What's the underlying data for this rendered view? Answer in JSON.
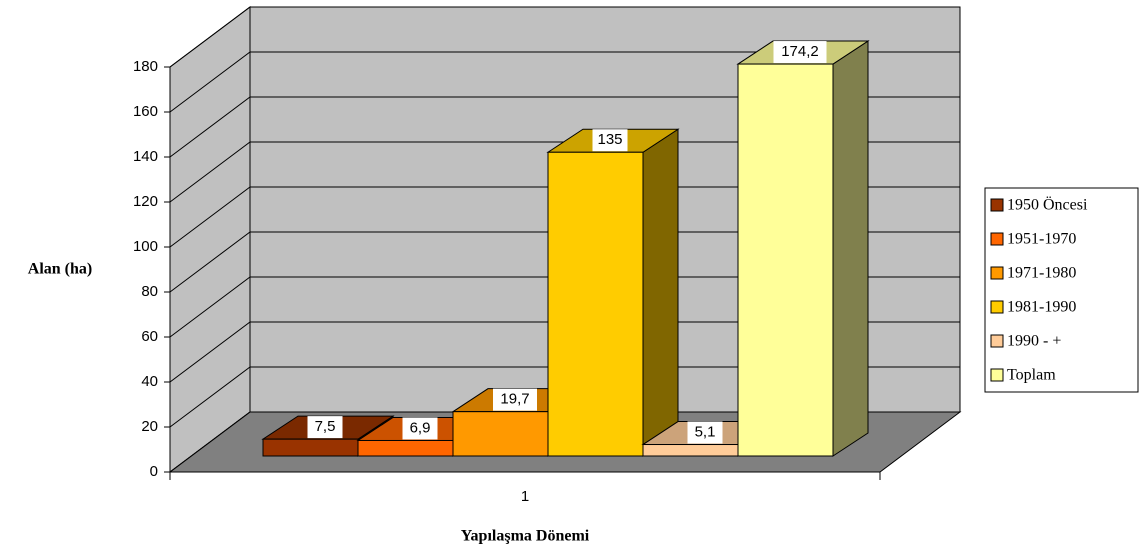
{
  "chart_data": {
    "type": "bar3d",
    "categories": [
      "1"
    ],
    "series": [
      {
        "name": "1950 Öncesi",
        "color": "#993300",
        "values": [
          7.5
        ],
        "value_labels": [
          "7,5"
        ]
      },
      {
        "name": "1951-1970",
        "color": "#ff6600",
        "values": [
          6.9
        ],
        "value_labels": [
          "6,9"
        ]
      },
      {
        "name": "1971-1980",
        "color": "#ff9900",
        "values": [
          19.7
        ],
        "value_labels": [
          "19,7"
        ]
      },
      {
        "name": "1981-1990",
        "color": "#ffcc00",
        "values": [
          135
        ]
      },
      {
        "name": "1990 - +",
        "color": "#ffcc99",
        "values": [
          5.1
        ],
        "value_labels": [
          "5,1"
        ]
      },
      {
        "name": "Toplam",
        "color": "#ffff99",
        "values": [
          174.2
        ],
        "value_labels": [
          "174,2"
        ]
      }
    ],
    "ylabel": "Alan (ha)",
    "xlabel": "Yapılaşma Dönemi",
    "ylim": [
      0,
      180
    ],
    "yticks": [
      0,
      20,
      40,
      60,
      80,
      100,
      120,
      140,
      160,
      180
    ],
    "grid": true,
    "legend": "right"
  }
}
